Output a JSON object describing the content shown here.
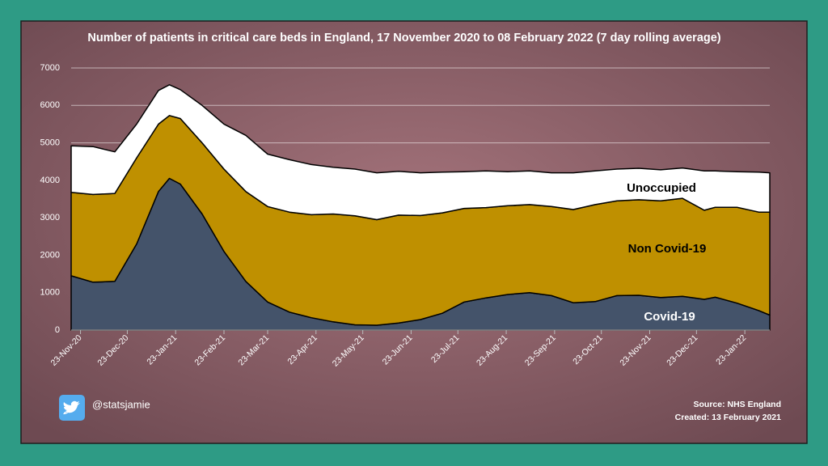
{
  "chart_data": {
    "type": "stacked-area",
    "title": "Number of patients in critical  care beds in England, 17 November 2020 to 08 February 2022 (7 day rolling  average)",
    "x": [
      "2020-11-17",
      "2020-12-01",
      "2020-12-15",
      "2020-12-29",
      "2021-01-12",
      "2021-01-19",
      "2021-01-26",
      "2021-02-09",
      "2021-02-23",
      "2021-03-09",
      "2021-03-23",
      "2021-04-06",
      "2021-04-20",
      "2021-05-04",
      "2021-05-18",
      "2021-06-01",
      "2021-06-15",
      "2021-06-29",
      "2021-07-13",
      "2021-07-27",
      "2021-08-10",
      "2021-08-24",
      "2021-09-07",
      "2021-09-21",
      "2021-10-05",
      "2021-10-19",
      "2021-11-02",
      "2021-11-16",
      "2021-11-30",
      "2021-12-14",
      "2021-12-28",
      "2022-01-04",
      "2022-01-18",
      "2022-02-01",
      "2022-02-08"
    ],
    "series": [
      {
        "name": "Covid-19",
        "color": "#44536a",
        "values": [
          1450,
          1280,
          1300,
          2300,
          3700,
          4050,
          3900,
          3100,
          2100,
          1300,
          750,
          480,
          330,
          220,
          140,
          130,
          190,
          280,
          450,
          750,
          860,
          950,
          1000,
          920,
          730,
          760,
          920,
          930,
          870,
          900,
          820,
          880,
          720,
          520,
          400
        ]
      },
      {
        "name": "Non Covid-19",
        "color": "#bf9000",
        "values": [
          2230,
          2340,
          2350,
          2300,
          1800,
          1680,
          1750,
          1900,
          2200,
          2400,
          2550,
          2670,
          2750,
          2880,
          2910,
          2820,
          2880,
          2780,
          2680,
          2500,
          2410,
          2370,
          2350,
          2380,
          2490,
          2590,
          2530,
          2550,
          2580,
          2620,
          2380,
          2400,
          2560,
          2630,
          2750
        ]
      },
      {
        "name": "Unoccupied",
        "color": "#ffffff",
        "values": [
          1240,
          1280,
          1110,
          900,
          900,
          820,
          770,
          1000,
          1200,
          1500,
          1400,
          1400,
          1340,
          1250,
          1250,
          1250,
          1170,
          1140,
          1090,
          980,
          980,
          910,
          900,
          900,
          980,
          900,
          850,
          840,
          830,
          810,
          1050,
          970,
          950,
          1070,
          1050
        ]
      }
    ],
    "xlim": [
      "2020-11-17",
      "2022-02-08"
    ],
    "xticks": [
      {
        "value": "2020-11-23",
        "label": "23-Nov-20"
      },
      {
        "value": "2020-12-23",
        "label": "23-Dec-20"
      },
      {
        "value": "2021-01-23",
        "label": "23-Jan-21"
      },
      {
        "value": "2021-02-23",
        "label": "23-Feb-21"
      },
      {
        "value": "2021-03-23",
        "label": "23-Mar-21"
      },
      {
        "value": "2021-04-23",
        "label": "23-Apr-21"
      },
      {
        "value": "2021-05-23",
        "label": "23-May-21"
      },
      {
        "value": "2021-06-23",
        "label": "23-Jun-21"
      },
      {
        "value": "2021-07-23",
        "label": "23-Jul-21"
      },
      {
        "value": "2021-08-23",
        "label": "23-Aug-21"
      },
      {
        "value": "2021-09-23",
        "label": "23-Sep-21"
      },
      {
        "value": "2021-10-23",
        "label": "23-Oct-21"
      },
      {
        "value": "2021-11-23",
        "label": "23-Nov-21"
      },
      {
        "value": "2021-12-23",
        "label": "23-Dec-21"
      },
      {
        "value": "2022-01-23",
        "label": "23-Jan-22"
      }
    ],
    "ylim": [
      0,
      7000
    ],
    "yticks": [
      0,
      1000,
      2000,
      3000,
      4000,
      5000,
      6000,
      7000
    ],
    "grid": true
  },
  "footer": {
    "handle": "@statsjamie",
    "source": "Source: NHS England",
    "created": "Created: 13 February 2021"
  }
}
